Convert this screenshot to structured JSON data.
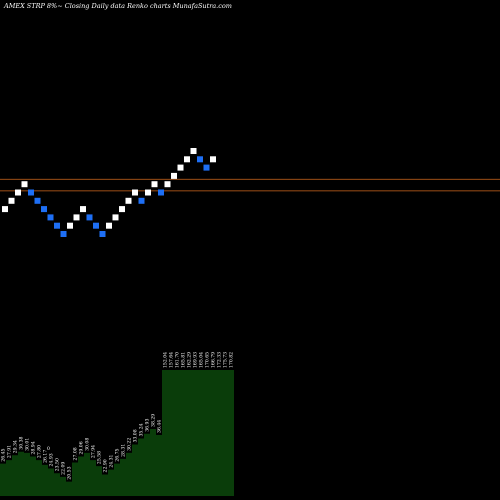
{
  "title": "AMEX  STRP 8%~  Closing Daily data  Renko  charts MunafaSutra.com",
  "colors": {
    "background": "#000000",
    "up_brick": "#ffffff",
    "down_brick": "#1e6ff5",
    "reference_line": "#d2691e",
    "volume_fill": "#0a3d0a",
    "volume_label": "#ffffff"
  },
  "chart_data": [
    {
      "type": "renko",
      "title": "AMEX  STRP 8%~  Closing Daily data  Renko  charts MunafaSutra.com",
      "bricks": [
        {
          "direction": "up",
          "level": 3
        },
        {
          "direction": "up",
          "level": 4
        },
        {
          "direction": "up",
          "level": 5
        },
        {
          "direction": "up",
          "level": 6
        },
        {
          "direction": "down",
          "level": 5
        },
        {
          "direction": "down",
          "level": 4
        },
        {
          "direction": "down",
          "level": 3
        },
        {
          "direction": "down",
          "level": 2
        },
        {
          "direction": "down",
          "level": 1
        },
        {
          "direction": "down",
          "level": 0
        },
        {
          "direction": "up",
          "level": 1
        },
        {
          "direction": "up",
          "level": 2
        },
        {
          "direction": "up",
          "level": 3
        },
        {
          "direction": "down",
          "level": 2
        },
        {
          "direction": "down",
          "level": 1
        },
        {
          "direction": "down",
          "level": 0
        },
        {
          "direction": "up",
          "level": 1
        },
        {
          "direction": "up",
          "level": 2
        },
        {
          "direction": "up",
          "level": 3
        },
        {
          "direction": "up",
          "level": 4
        },
        {
          "direction": "up",
          "level": 5
        },
        {
          "direction": "down",
          "level": 4
        },
        {
          "direction": "up",
          "level": 5
        },
        {
          "direction": "up",
          "level": 6
        },
        {
          "direction": "down",
          "level": 5
        },
        {
          "direction": "up",
          "level": 6
        },
        {
          "direction": "up",
          "level": 7
        },
        {
          "direction": "up",
          "level": 8
        },
        {
          "direction": "up",
          "level": 9
        },
        {
          "direction": "up",
          "level": 10
        },
        {
          "direction": "down",
          "level": 9
        },
        {
          "direction": "down",
          "level": 8
        },
        {
          "direction": "up",
          "level": 9
        }
      ],
      "reference_levels": [
        6.6,
        5.2
      ],
      "volume": [
        {
          "label": "26.45",
          "height": 0.27
        },
        {
          "label": "27.91",
          "height": 0.3
        },
        {
          "label": "29.34",
          "height": 0.34
        },
        {
          "label": "30.38",
          "height": 0.37
        },
        {
          "label": "30.01",
          "height": 0.36
        },
        {
          "label": "28.94",
          "height": 0.33
        },
        {
          "label": "27.80",
          "height": 0.3
        },
        {
          "label": "26.17",
          "height": 0.26
        },
        {
          "label": "24.93",
          "height": 0.23
        },
        {
          "label": "23.50",
          "height": 0.19
        },
        {
          "label": "22.09",
          "height": 0.16
        },
        {
          "label": "20.53",
          "height": 0.12
        },
        {
          "label": "27.08",
          "height": 0.28
        },
        {
          "label": "29.06",
          "height": 0.33
        },
        {
          "label": "30.08",
          "height": 0.36
        },
        {
          "label": "27.94",
          "height": 0.3
        },
        {
          "label": "25.58",
          "height": 0.25
        },
        {
          "label": "22.90",
          "height": 0.18
        },
        {
          "label": "24.31",
          "height": 0.22
        },
        {
          "label": "26.75",
          "height": 0.27
        },
        {
          "label": "28.31",
          "height": 0.31
        },
        {
          "label": "30.22",
          "height": 0.36
        },
        {
          "label": "33.08",
          "height": 0.43
        },
        {
          "label": "35.24",
          "height": 0.48
        },
        {
          "label": "36.93",
          "height": 0.52
        },
        {
          "label": "38.29",
          "height": 0.56
        },
        {
          "label": "36.44",
          "height": 0.51
        },
        {
          "label": "152.04",
          "height": 1.0
        },
        {
          "label": "157.64",
          "height": 1.0
        },
        {
          "label": "161.70",
          "height": 1.0
        },
        {
          "label": "165.81",
          "height": 1.0
        },
        {
          "label": "162.29",
          "height": 1.0
        },
        {
          "label": "169.93",
          "height": 1.0
        },
        {
          "label": "165.04",
          "height": 1.0
        },
        {
          "label": "170.65",
          "height": 1.0
        },
        {
          "label": "166.79",
          "height": 1.0
        },
        {
          "label": "172.33",
          "height": 1.0
        },
        {
          "label": "175.73",
          "height": 1.0
        },
        {
          "label": "170.82",
          "height": 1.0
        }
      ],
      "volume_extra_label": "0"
    }
  ]
}
